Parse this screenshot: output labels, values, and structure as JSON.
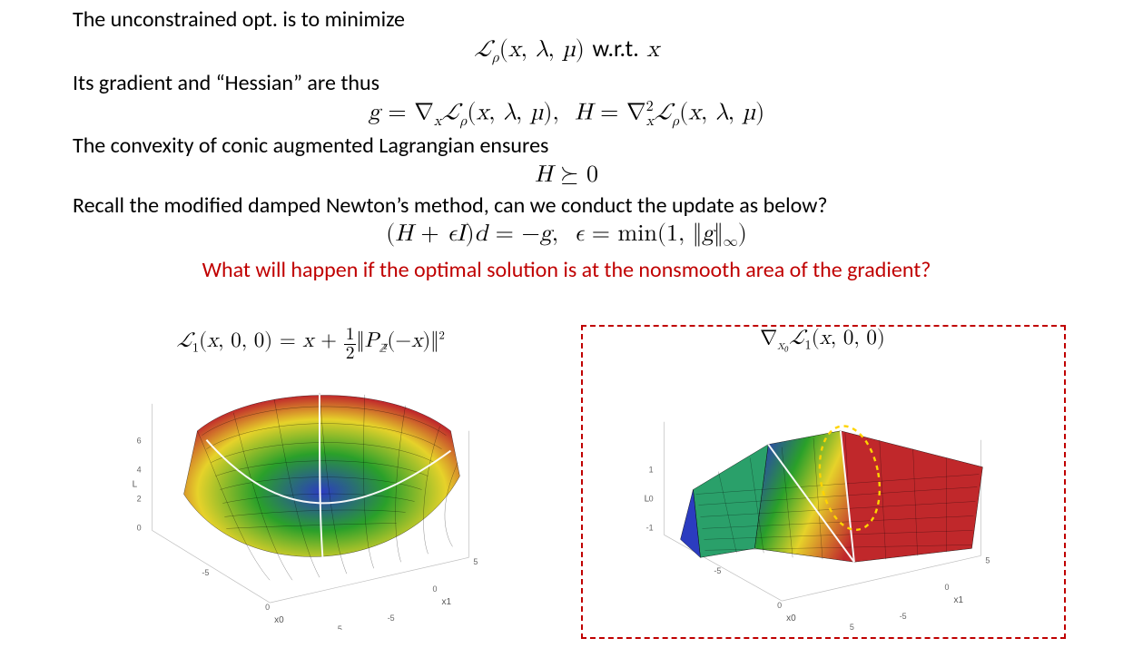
{
  "text": {
    "line1": "The unconstrained opt. is to minimize",
    "line2": "Its gradient and “Hessian” are thus",
    "line3": "The convexity of conic augmented Lagrangian ensures",
    "line4": "Recall the modified damped Newton’s method, can we conduct the update as below?",
    "red_question": "What will happen if the optimal solution is at the nonsmooth area of the gradient?"
  },
  "equations": {
    "objective_html": "<span class=\"ital\">ℒ</span><span class=\"sub ital\">ρ</span>(<span class=\"ital\">x</span>, <span class=\"ital\">λ</span>, <span class=\"ital\">µ</span>) <span style=\"font-family:Calibri,Arial,sans-serif;\">w.r.t.</span> <span class=\"ital\">x</span>",
    "grad_hess_html": "<span class=\"ital\">g</span> = ∇<span class=\"sub ital\">x</span><span class=\"ital\">ℒ</span><span class=\"sub ital\">ρ</span>(<span class=\"ital\">x</span>, <span class=\"ital\">λ</span>, <span class=\"ital\">µ</span>),&nbsp;&nbsp;<span class=\"ital\">H</span> = ∇<span class=\"sup\">2</span><span class=\"sub ital\" style=\"margin-left:-0.5em;\">x</span><span class=\"ital\">ℒ</span><span class=\"sub ital\">ρ</span>(<span class=\"ital\">x</span>, <span class=\"ital\">λ</span>, <span class=\"ital\">µ</span>)",
    "psd_html": "<span class=\"ital\">H</span> ⪰ 0",
    "newton_html": "(<span class=\"ital\">H</span> + <span class=\"ital\">ϵI</span>)<span class=\"ital\">d</span> = −<span class=\"ital\">g</span>,&nbsp;&nbsp;<span class=\"ital\">ϵ</span> = min(1, ‖<span class=\"ital\">g</span>‖<span class=\"sub\">∞</span>)",
    "caption_left_html": "<span class=\"ital\">ℒ</span><span class=\"sub\">1</span>(<span class=\"ital\">x</span>, 0, 0) = <span class=\"ital\">x</span> + <span class=\"frac\"><span class=\"num\">1</span><span class=\"den\">2</span></span>‖<span class=\"ital\">P</span><span class=\"subs ital\">ℤ</span><span class=\"subs\" style=\"margin-left:-0.25em;\">²</span>(−<span class=\"ital\">x</span>)‖<span class=\"sups\">2</span>",
    "caption_right_html": "∇<span class=\"sub ital\">x₀</span><span class=\"ital\">ℒ</span><span class=\"sub\">1</span>(<span class=\"ital\">x</span>, 0, 0)"
  },
  "axis_labels": {
    "z": "L",
    "x": "x0",
    "y": "x1"
  },
  "left_plot": {
    "type": "3d-surface",
    "function_description": "L1(x,0,0) = x + 0.5*||P_Q2(-x)||^2 — convex bowl with one quadrant nearly flat",
    "x_range": [
      -5,
      5
    ],
    "y_range": [
      -5,
      5
    ],
    "z_ticks": [
      0,
      2,
      4,
      6
    ],
    "xy_ticks": [
      -5,
      0,
      5
    ],
    "colors": {
      "low": "#2b3cc0",
      "mid1": "#2aa02a",
      "mid2": "#e6d22a",
      "high": "#c0282b",
      "mesh": "#000000",
      "crease": "#ffffff",
      "background": "#ffffff",
      "axis": "#808080"
    },
    "mesh_lines": 18,
    "label_fontsize": 10,
    "tick_fontsize": 9
  },
  "right_plot": {
    "type": "3d-surface",
    "function_description": "grad_{x0} L1(x,0,0) — piecewise-linear kinked plane with nonsmooth crease",
    "x_range": [
      -5,
      5
    ],
    "y_range": [
      -5,
      5
    ],
    "z_ticks": [
      -1,
      0,
      1
    ],
    "xy_ticks": [
      -5,
      0,
      5
    ],
    "colors": {
      "low": "#2b3cc0",
      "mid1": "#2aa02a",
      "mid2": "#e6d22a",
      "high": "#c0282b",
      "mesh": "#000000",
      "background": "#ffffff",
      "axis": "#808080"
    },
    "highlight_ellipse": {
      "stroke": "#ffd400",
      "stroke_dasharray": "4 4",
      "cx_rel": 0.55,
      "cy_rel": 0.4,
      "rx_rel": 0.1,
      "ry_rel": 0.22,
      "rotation_deg": -28
    },
    "highlight_box": {
      "stroke": "#c00000",
      "dash": "6 5"
    },
    "mesh_lines": 18,
    "label_fontsize": 10,
    "tick_fontsize": 9
  },
  "layout": {
    "slide_size": [
      1248,
      714
    ],
    "body_font_size": 24,
    "eq_font_size": 26,
    "caption_font_size": 23,
    "red_color": "#c00000",
    "text_color": "#000000",
    "background": "#ffffff"
  }
}
